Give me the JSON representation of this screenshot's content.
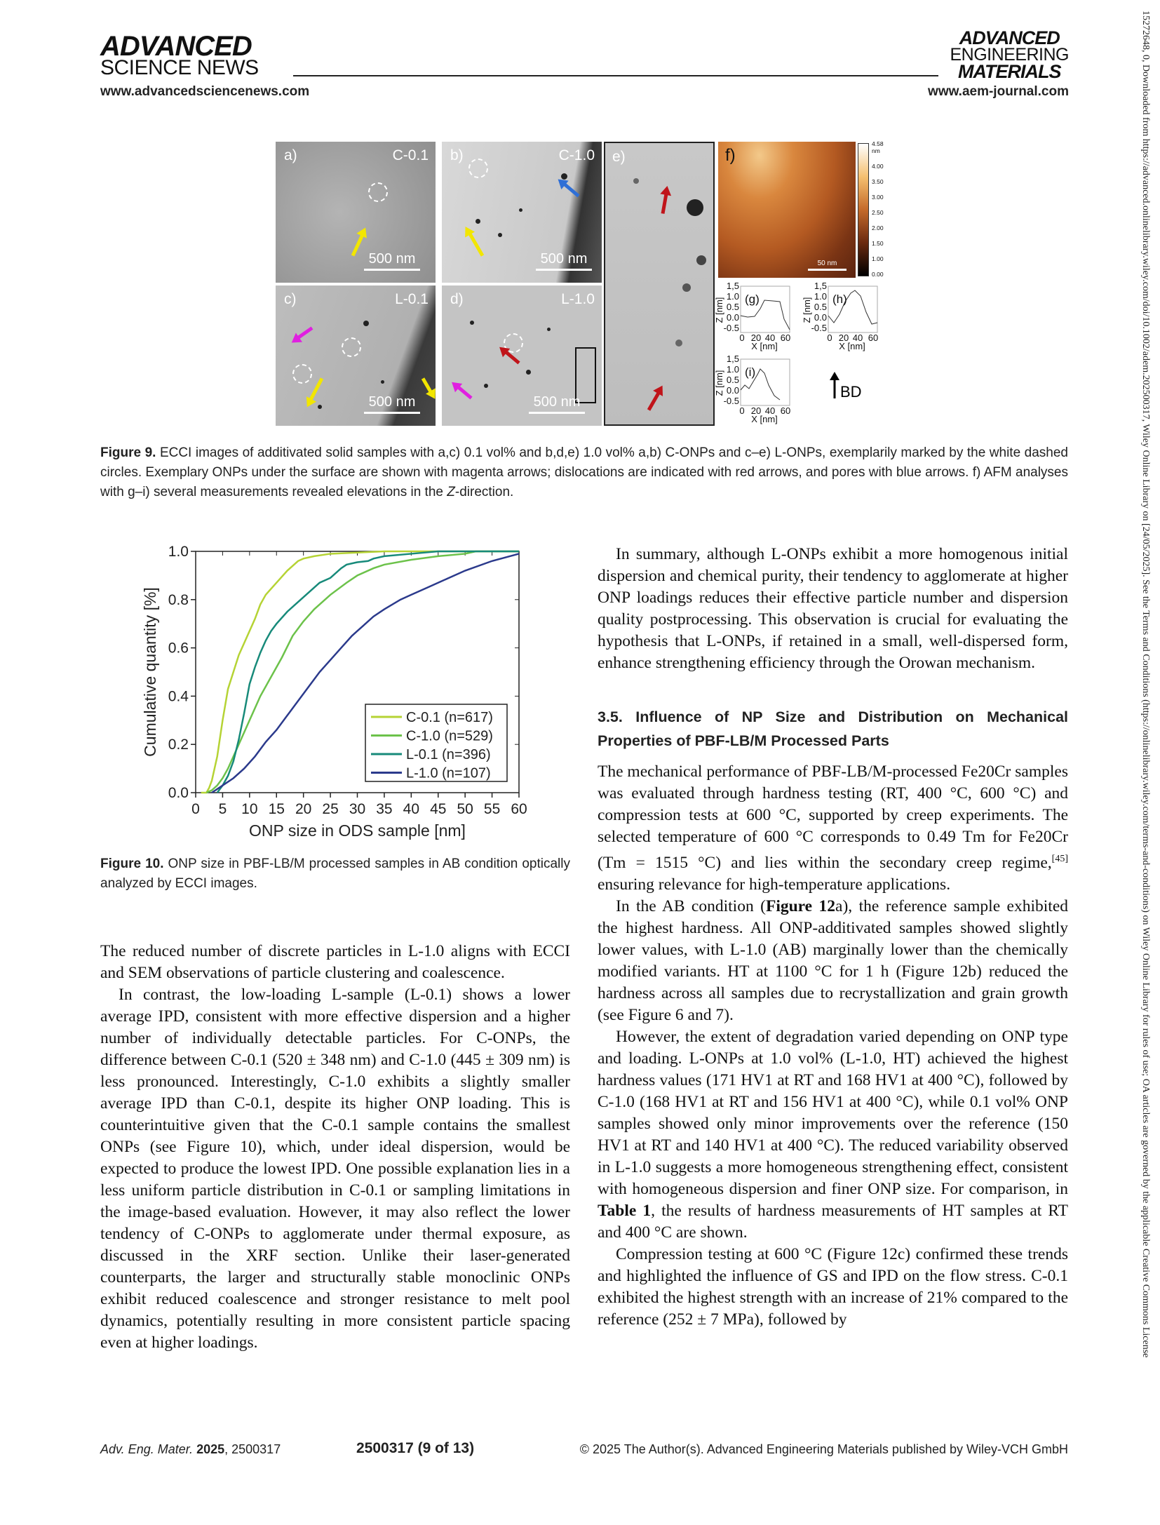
{
  "header": {
    "left_logo_line1": "ADVANCED",
    "left_logo_line2": "SCIENCE NEWS",
    "left_url": "www.advancedsciencenews.com",
    "right_logo_line1": "ADVANCED",
    "right_logo_line2": "ENGINEERING",
    "right_logo_line3": "MATERIALS",
    "right_url": "www.aem-journal.com"
  },
  "side_note": "15272648, 0, Downloaded from https://advanced.onlinelibrary.wiley.com/doi/10.1002/adem.202500317, Wiley Online Library on [24/05/2025]. See the Terms and Conditions (https://onlinelibrary.wiley.com/terms-and-conditions) on Wiley Online Library for rules of use; OA articles are governed by the applicable Creative Commons License",
  "figure9": {
    "panels": [
      {
        "label": "a)",
        "sample": "C-0.1",
        "scale": "500 nm"
      },
      {
        "label": "b)",
        "sample": "C-1.0",
        "scale": "500 nm"
      },
      {
        "label": "c)",
        "sample": "L-0.1",
        "scale": "500 nm"
      },
      {
        "label": "d)",
        "sample": "L-1.0",
        "scale": "500 nm"
      },
      {
        "label": "e)"
      },
      {
        "label": "f)",
        "scale": "50 nm"
      }
    ],
    "colorbar": [
      "4.58 nm",
      "4.00",
      "3.50",
      "3.00",
      "2.50",
      "2.00",
      "1.50",
      "1.00",
      "0.00"
    ],
    "profiles": [
      {
        "label": "(g)",
        "yticks": [
          "1,5",
          "1.0",
          "0.5",
          "0.0",
          "-0.5"
        ],
        "xticks": [
          "0",
          "20",
          "40",
          "60"
        ],
        "xlabel": "X [nm]",
        "ylabel": "Z [nm]"
      },
      {
        "label": "(h)",
        "yticks": [
          "1,5",
          "1.0",
          "0.5",
          "0.0",
          "-0.5"
        ],
        "xticks": [
          "0",
          "20",
          "40",
          "60"
        ],
        "xlabel": "X [nm]",
        "ylabel": "Z [nm]"
      },
      {
        "label": "(i)",
        "yticks": [
          "1,5",
          "1.0",
          "0.5",
          "0.0",
          "-0.5"
        ],
        "xticks": [
          "0",
          "20",
          "40",
          "60"
        ],
        "xlabel": "X [nm]",
        "ylabel": "Z [nm]"
      }
    ],
    "build_direction": "BD",
    "arrow_colors": {
      "marked": "#ffffff",
      "onp": "#e020e0",
      "dislocation": "#c0141a",
      "pore": "#2f6fd6",
      "highlight": "#f2e600"
    },
    "caption_label": "Figure 9.",
    "caption": "ECCI images of additivated solid samples with a,c) 0.1 vol% and b,d,e) 1.0 vol% a,b) C-ONPs and c–e) L-ONPs, exemplarily marked by the white dashed circles. Exemplary ONPs under the surface are shown with magenta arrows; dislocations are indicated with red arrows, and pores with blue arrows. f) AFM analyses with g–i) several measurements revealed elevations in the ",
    "caption_italic": "Z",
    "caption_end": "-direction."
  },
  "chart_data": {
    "type": "line",
    "xlabel": "ONP size in ODS sample [nm]",
    "ylabel": "Cumulative quantity [%]",
    "xlim": [
      0,
      60
    ],
    "ylim": [
      0,
      1.0
    ],
    "xticks": [
      0,
      5,
      10,
      15,
      20,
      25,
      30,
      35,
      40,
      45,
      50,
      55,
      60
    ],
    "yticks": [
      "0.0",
      "0.2",
      "0.4",
      "0.6",
      "0.8",
      "1.0"
    ],
    "grid": false,
    "legend": "bottom-right",
    "series": [
      {
        "name": "C-0.1 (n=617)",
        "color": "#b5d334",
        "points": [
          [
            1,
            0
          ],
          [
            2,
            0
          ],
          [
            2.5,
            0.02
          ],
          [
            3,
            0.05
          ],
          [
            4,
            0.15
          ],
          [
            5,
            0.3
          ],
          [
            6,
            0.43
          ],
          [
            7,
            0.5
          ],
          [
            8,
            0.57
          ],
          [
            9,
            0.62
          ],
          [
            10,
            0.67
          ],
          [
            11,
            0.72
          ],
          [
            12,
            0.78
          ],
          [
            13,
            0.82
          ],
          [
            15,
            0.87
          ],
          [
            17,
            0.92
          ],
          [
            19,
            0.96
          ],
          [
            20,
            0.97
          ],
          [
            22,
            0.98
          ],
          [
            25,
            0.99
          ],
          [
            30,
            0.995
          ],
          [
            35,
            1.0
          ],
          [
            60,
            1.0
          ]
        ]
      },
      {
        "name": "C-1.0 (n=529)",
        "color": "#6cc24a",
        "points": [
          [
            2,
            0
          ],
          [
            3,
            0.01
          ],
          [
            4,
            0.03
          ],
          [
            5,
            0.06
          ],
          [
            6,
            0.1
          ],
          [
            7,
            0.15
          ],
          [
            8,
            0.2
          ],
          [
            10,
            0.3
          ],
          [
            12,
            0.4
          ],
          [
            14,
            0.48
          ],
          [
            16,
            0.56
          ],
          [
            18,
            0.65
          ],
          [
            20,
            0.71
          ],
          [
            22,
            0.76
          ],
          [
            25,
            0.82
          ],
          [
            28,
            0.87
          ],
          [
            30,
            0.9
          ],
          [
            33,
            0.93
          ],
          [
            35,
            0.945
          ],
          [
            40,
            0.965
          ],
          [
            45,
            0.98
          ],
          [
            50,
            0.99
          ],
          [
            52,
            1.0
          ],
          [
            60,
            1.0
          ]
        ]
      },
      {
        "name": "L-0.1 (n=396)",
        "color": "#178a7a",
        "points": [
          [
            4,
            0
          ],
          [
            5,
            0.03
          ],
          [
            6,
            0.07
          ],
          [
            7,
            0.13
          ],
          [
            8,
            0.22
          ],
          [
            9,
            0.33
          ],
          [
            10,
            0.45
          ],
          [
            11,
            0.52
          ],
          [
            12,
            0.58
          ],
          [
            13,
            0.63
          ],
          [
            14,
            0.67
          ],
          [
            15,
            0.7
          ],
          [
            17,
            0.75
          ],
          [
            19,
            0.79
          ],
          [
            21,
            0.83
          ],
          [
            23,
            0.87
          ],
          [
            25,
            0.89
          ],
          [
            27,
            0.93
          ],
          [
            28,
            0.945
          ],
          [
            30,
            0.955
          ],
          [
            32,
            0.96
          ],
          [
            33,
            0.97
          ],
          [
            35,
            0.98
          ],
          [
            40,
            0.99
          ],
          [
            45,
            1.0
          ],
          [
            60,
            1.0
          ]
        ]
      },
      {
        "name": "L-1.0 (n=107)",
        "color": "#2b3a8c",
        "points": [
          [
            3,
            0
          ],
          [
            5,
            0.03
          ],
          [
            7,
            0.06
          ],
          [
            9,
            0.1
          ],
          [
            11,
            0.15
          ],
          [
            13,
            0.21
          ],
          [
            15,
            0.26
          ],
          [
            17,
            0.32
          ],
          [
            19,
            0.38
          ],
          [
            21,
            0.44
          ],
          [
            23,
            0.5
          ],
          [
            25,
            0.55
          ],
          [
            27,
            0.6
          ],
          [
            29,
            0.65
          ],
          [
            31,
            0.69
          ],
          [
            33,
            0.73
          ],
          [
            35,
            0.76
          ],
          [
            38,
            0.8
          ],
          [
            40,
            0.82
          ],
          [
            43,
            0.85
          ],
          [
            46,
            0.88
          ],
          [
            50,
            0.92
          ],
          [
            55,
            0.96
          ],
          [
            60,
            0.99
          ]
        ]
      }
    ]
  },
  "figure10": {
    "caption_label": "Figure 10.",
    "caption": "ONP size in PBF-LB/M processed samples in AB condition optically analyzed by ECCI images."
  },
  "left_column": {
    "p1": "The reduced number of discrete particles in L-1.0 aligns with ECCI and SEM observations of particle clustering and coalescence.",
    "p2": "In contrast, the low-loading L-sample (L-0.1) shows a lower average IPD, consistent with more effective dispersion and a higher number of individually detectable particles. For C-ONPs, the difference between C-0.1 (520 ± 348 nm) and C-1.0 (445 ± 309 nm) is less pronounced. Interestingly, C-1.0 exhibits a slightly smaller average IPD than C-0.1, despite its higher ONP loading. This is counterintuitive given that the C-0.1 sample contains the smallest ONPs (see Figure 10), which, under ideal dispersion, would be expected to produce the lowest IPD. One possible explanation lies in a less uniform particle distribution in C-0.1 or sampling limitations in the image-based evaluation. However, it may also reflect the lower tendency of C-ONPs to agglomerate under thermal exposure, as discussed in the XRF section. Unlike their laser-generated counterparts, the larger and structurally stable monoclinic ONPs exhibit reduced coalescence and stronger resistance to melt pool dynamics, potentially resulting in more consistent particle spacing even at higher loadings."
  },
  "right_column": {
    "p1": "In summary, although L-ONPs exhibit a more homogenous initial dispersion and chemical purity, their tendency to agglomerate at higher ONP loadings reduces their effective particle number and dispersion quality postprocessing. This observation is crucial for evaluating the hypothesis that L-ONPs, if retained in a small, well-dispersed form, enhance strengthening efficiency through the Orowan mechanism.",
    "heading": "3.5. Influence of NP Size and Distribution on Mechanical Properties of PBF-LB/M Processed Parts",
    "p2a": "The mechanical performance of PBF-LB/M-processed Fe20Cr samples was evaluated through hardness testing (RT, 400 °C, 600 °C) and compression tests at 600 °C, supported by creep experiments. The selected temperature of 600 °C corresponds to 0.49 Tm for Fe20Cr (Tm = 1515 °C) and lies within the secondary creep regime,",
    "p2_ref": "[45]",
    "p2b": " ensuring relevance for high-temperature applications.",
    "p3a": "In the AB condition (",
    "p3_bold": "Figure 12",
    "p3b": "a), the reference sample exhibited the highest hardness. All ONP-additivated samples showed slightly lower values, with L-1.0 (AB) marginally lower than the chemically modified variants. HT at 1100 °C for 1 h (Figure 12b) reduced the hardness across all samples due to recrystallization and grain growth (see Figure 6 and 7).",
    "p4a": "However, the extent of degradation varied depending on ONP type and loading. L-ONPs at 1.0 vol% (L-1.0, HT) achieved the highest hardness values (171 HV1 at RT and 168 HV1 at 400 °C), followed by C-1.0 (168 HV1 at RT and 156 HV1 at 400 °C), while 0.1 vol% ONP samples showed only minor improvements over the reference (150 HV1 at RT and 140 HV1 at 400 °C). The reduced variability observed in L-1.0 suggests a more homogeneous strengthening effect, consistent with homogeneous dispersion and finer ONP size. For comparison, in ",
    "p4_bold": "Table 1",
    "p4b": ", the results of hardness measurements of HT samples at RT and 400 °C are shown.",
    "p5": "Compression testing at 600 °C (Figure 12c) confirmed these trends and highlighted the influence of GS and IPD on the flow stress. C-0.1 exhibited the highest strength with an increase of 21% compared to the reference (252 ± 7 MPa), followed by"
  },
  "footer": {
    "journal": "Adv. Eng. Mater.",
    "year": "2025",
    "article": ", 2500317",
    "page": "2500317 (9 of 13)",
    "copyright": "© 2025 The Author(s). Advanced Engineering Materials published by Wiley-VCH GmbH"
  }
}
